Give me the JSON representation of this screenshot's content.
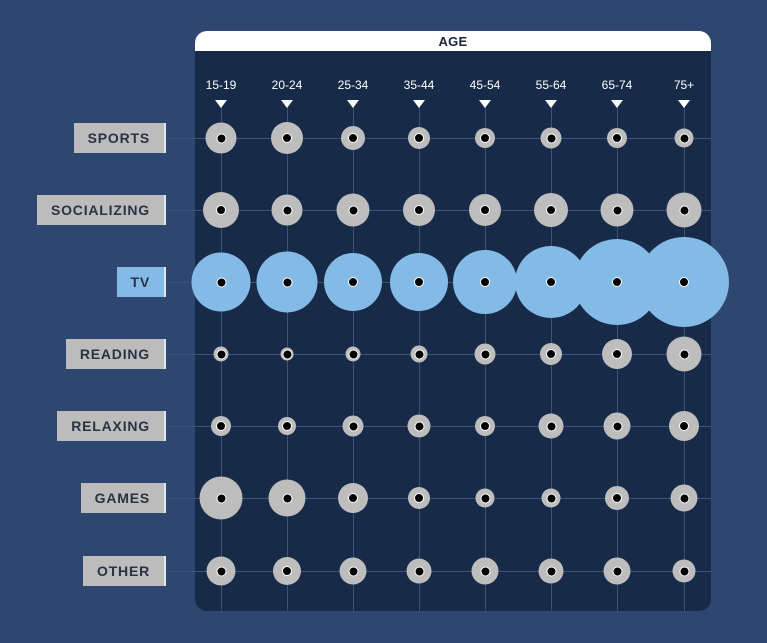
{
  "chart_data": {
    "type": "bubble-matrix",
    "title": "AGE",
    "xlabel": "AGE",
    "ylabel": "",
    "categories": [
      "15-19",
      "20-24",
      "25-34",
      "35-44",
      "45-54",
      "55-64",
      "65-74",
      "75+"
    ],
    "rows": [
      "SPORTS",
      "SOCIALIZING",
      "TV",
      "READING",
      "RELAXING",
      "GAMES",
      "OTHER"
    ],
    "value_unit": "bubble diameter (px, relative)",
    "highlighted_row": "TV",
    "series": [
      {
        "name": "SPORTS",
        "values": [
          31,
          32,
          24,
          22,
          20,
          21,
          20,
          19
        ]
      },
      {
        "name": "SOCIALIZING",
        "values": [
          36,
          31,
          33,
          32,
          32,
          34,
          33,
          35
        ]
      },
      {
        "name": "TV",
        "values": [
          59,
          61,
          58,
          58,
          64,
          72,
          86,
          90
        ]
      },
      {
        "name": "READING",
        "values": [
          15,
          13,
          15,
          17,
          21,
          22,
          30,
          35
        ]
      },
      {
        "name": "RELAXING",
        "values": [
          20,
          18,
          21,
          23,
          20,
          25,
          27,
          30
        ]
      },
      {
        "name": "GAMES",
        "values": [
          43,
          37,
          30,
          22,
          19,
          19,
          24,
          27
        ]
      },
      {
        "name": "OTHER",
        "values": [
          29,
          28,
          27,
          25,
          27,
          25,
          27,
          23
        ]
      }
    ],
    "grid": true,
    "legend": null
  },
  "colors": {
    "background": "#2e4670",
    "panel": "#172a48",
    "bubble": "#bdbdbd",
    "highlight": "#84bbe6",
    "grid": "#3b5377"
  },
  "header": {
    "title": "AGE"
  }
}
